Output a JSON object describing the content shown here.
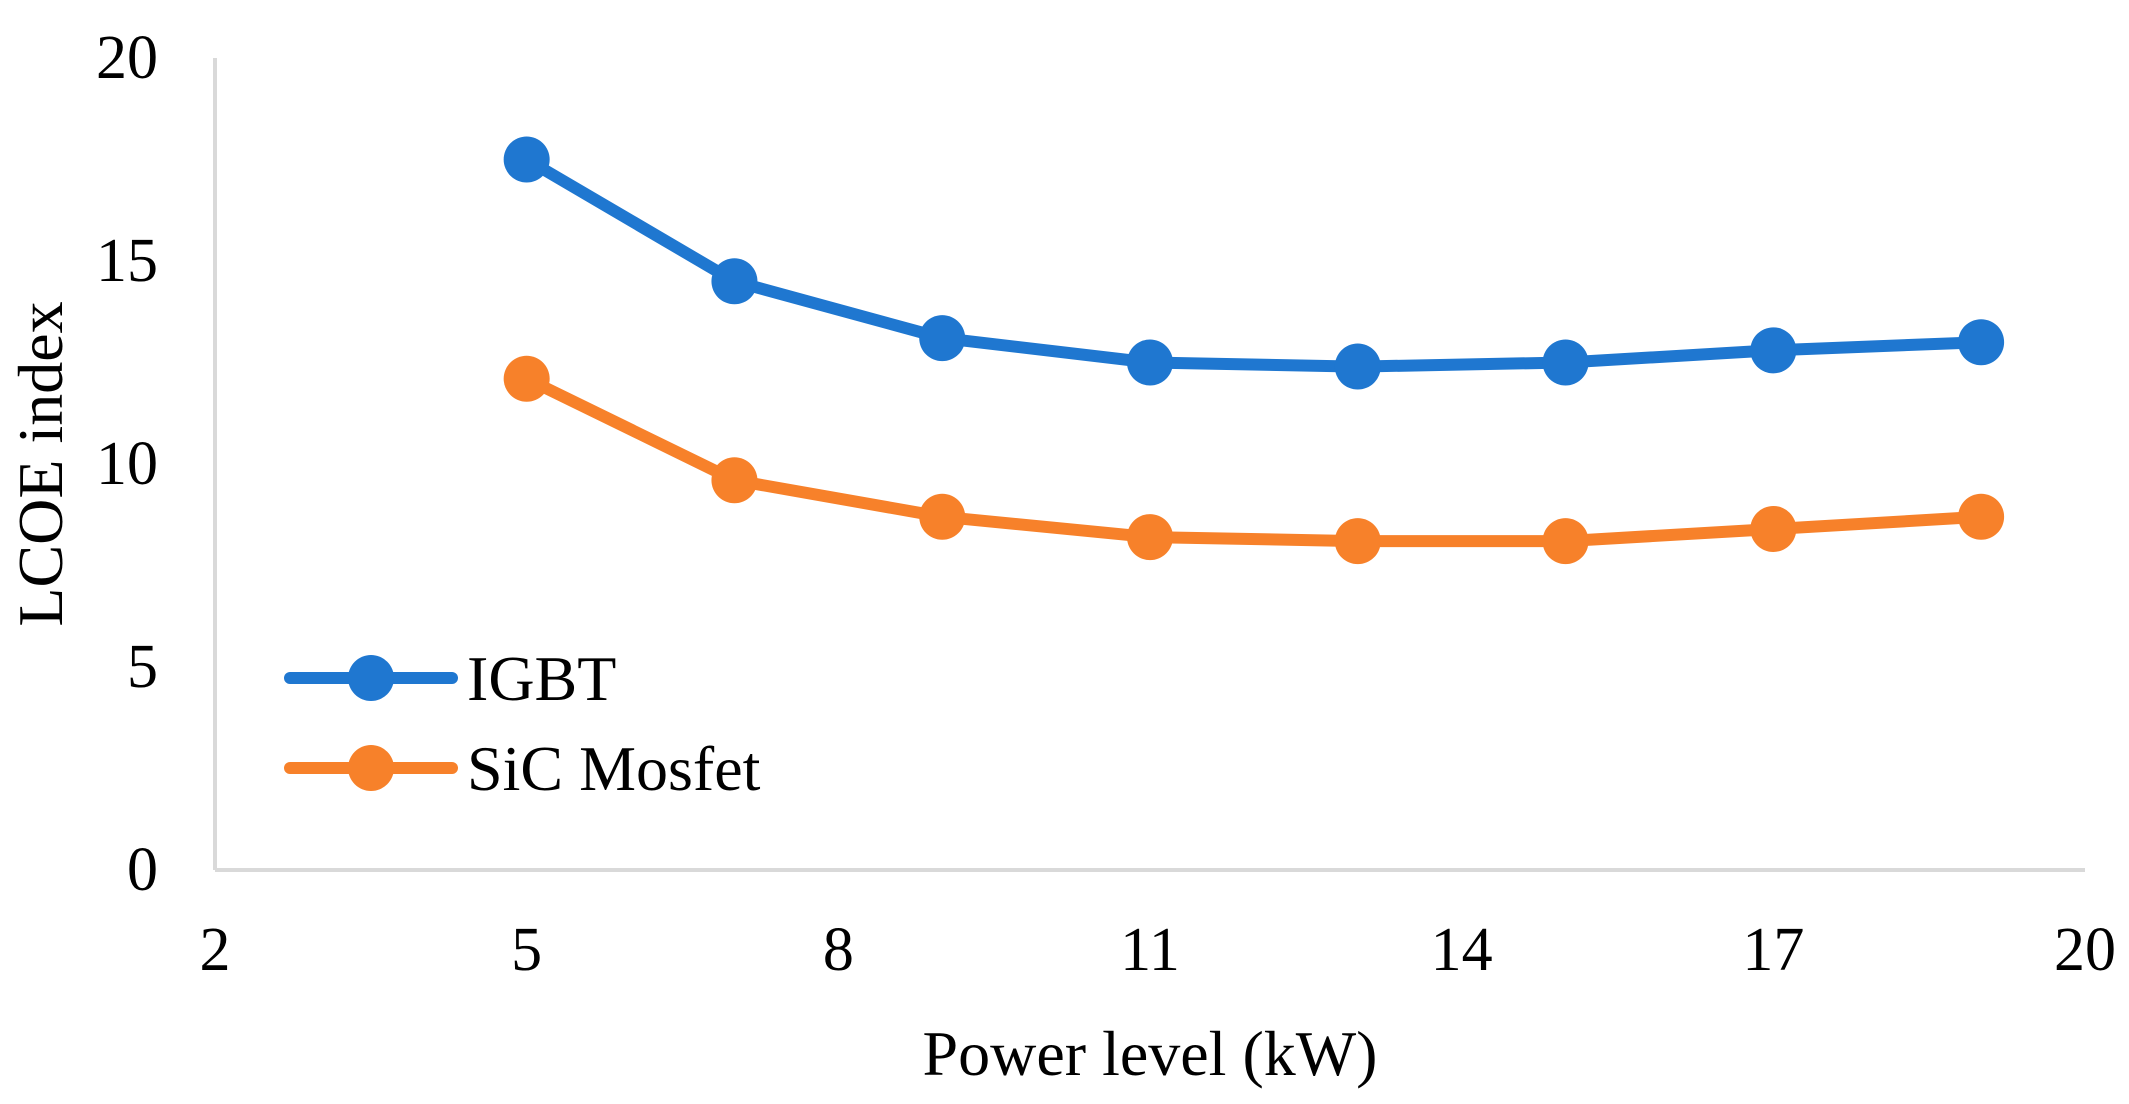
{
  "chart_data": {
    "type": "line",
    "title": "",
    "xlabel": "Power level (kW)",
    "ylabel": "LCOE index",
    "xlim": [
      2,
      20
    ],
    "ylim": [
      0,
      20
    ],
    "x_ticks": [
      2,
      5,
      8,
      11,
      14,
      17,
      20
    ],
    "y_ticks": [
      0,
      5,
      10,
      15,
      20
    ],
    "grid": false,
    "legend_position": "bottom-left",
    "x": [
      5,
      7,
      9,
      11,
      13,
      15,
      17,
      19
    ],
    "series": [
      {
        "name": "IGBT",
        "color": "#1F77D0",
        "values": [
          17.5,
          14.5,
          13.1,
          12.5,
          12.4,
          12.5,
          12.8,
          13.0
        ]
      },
      {
        "name": "SiC Mosfet",
        "color": "#F7812A",
        "values": [
          12.1,
          9.6,
          8.7,
          8.2,
          8.1,
          8.1,
          8.4,
          8.7
        ]
      }
    ]
  }
}
